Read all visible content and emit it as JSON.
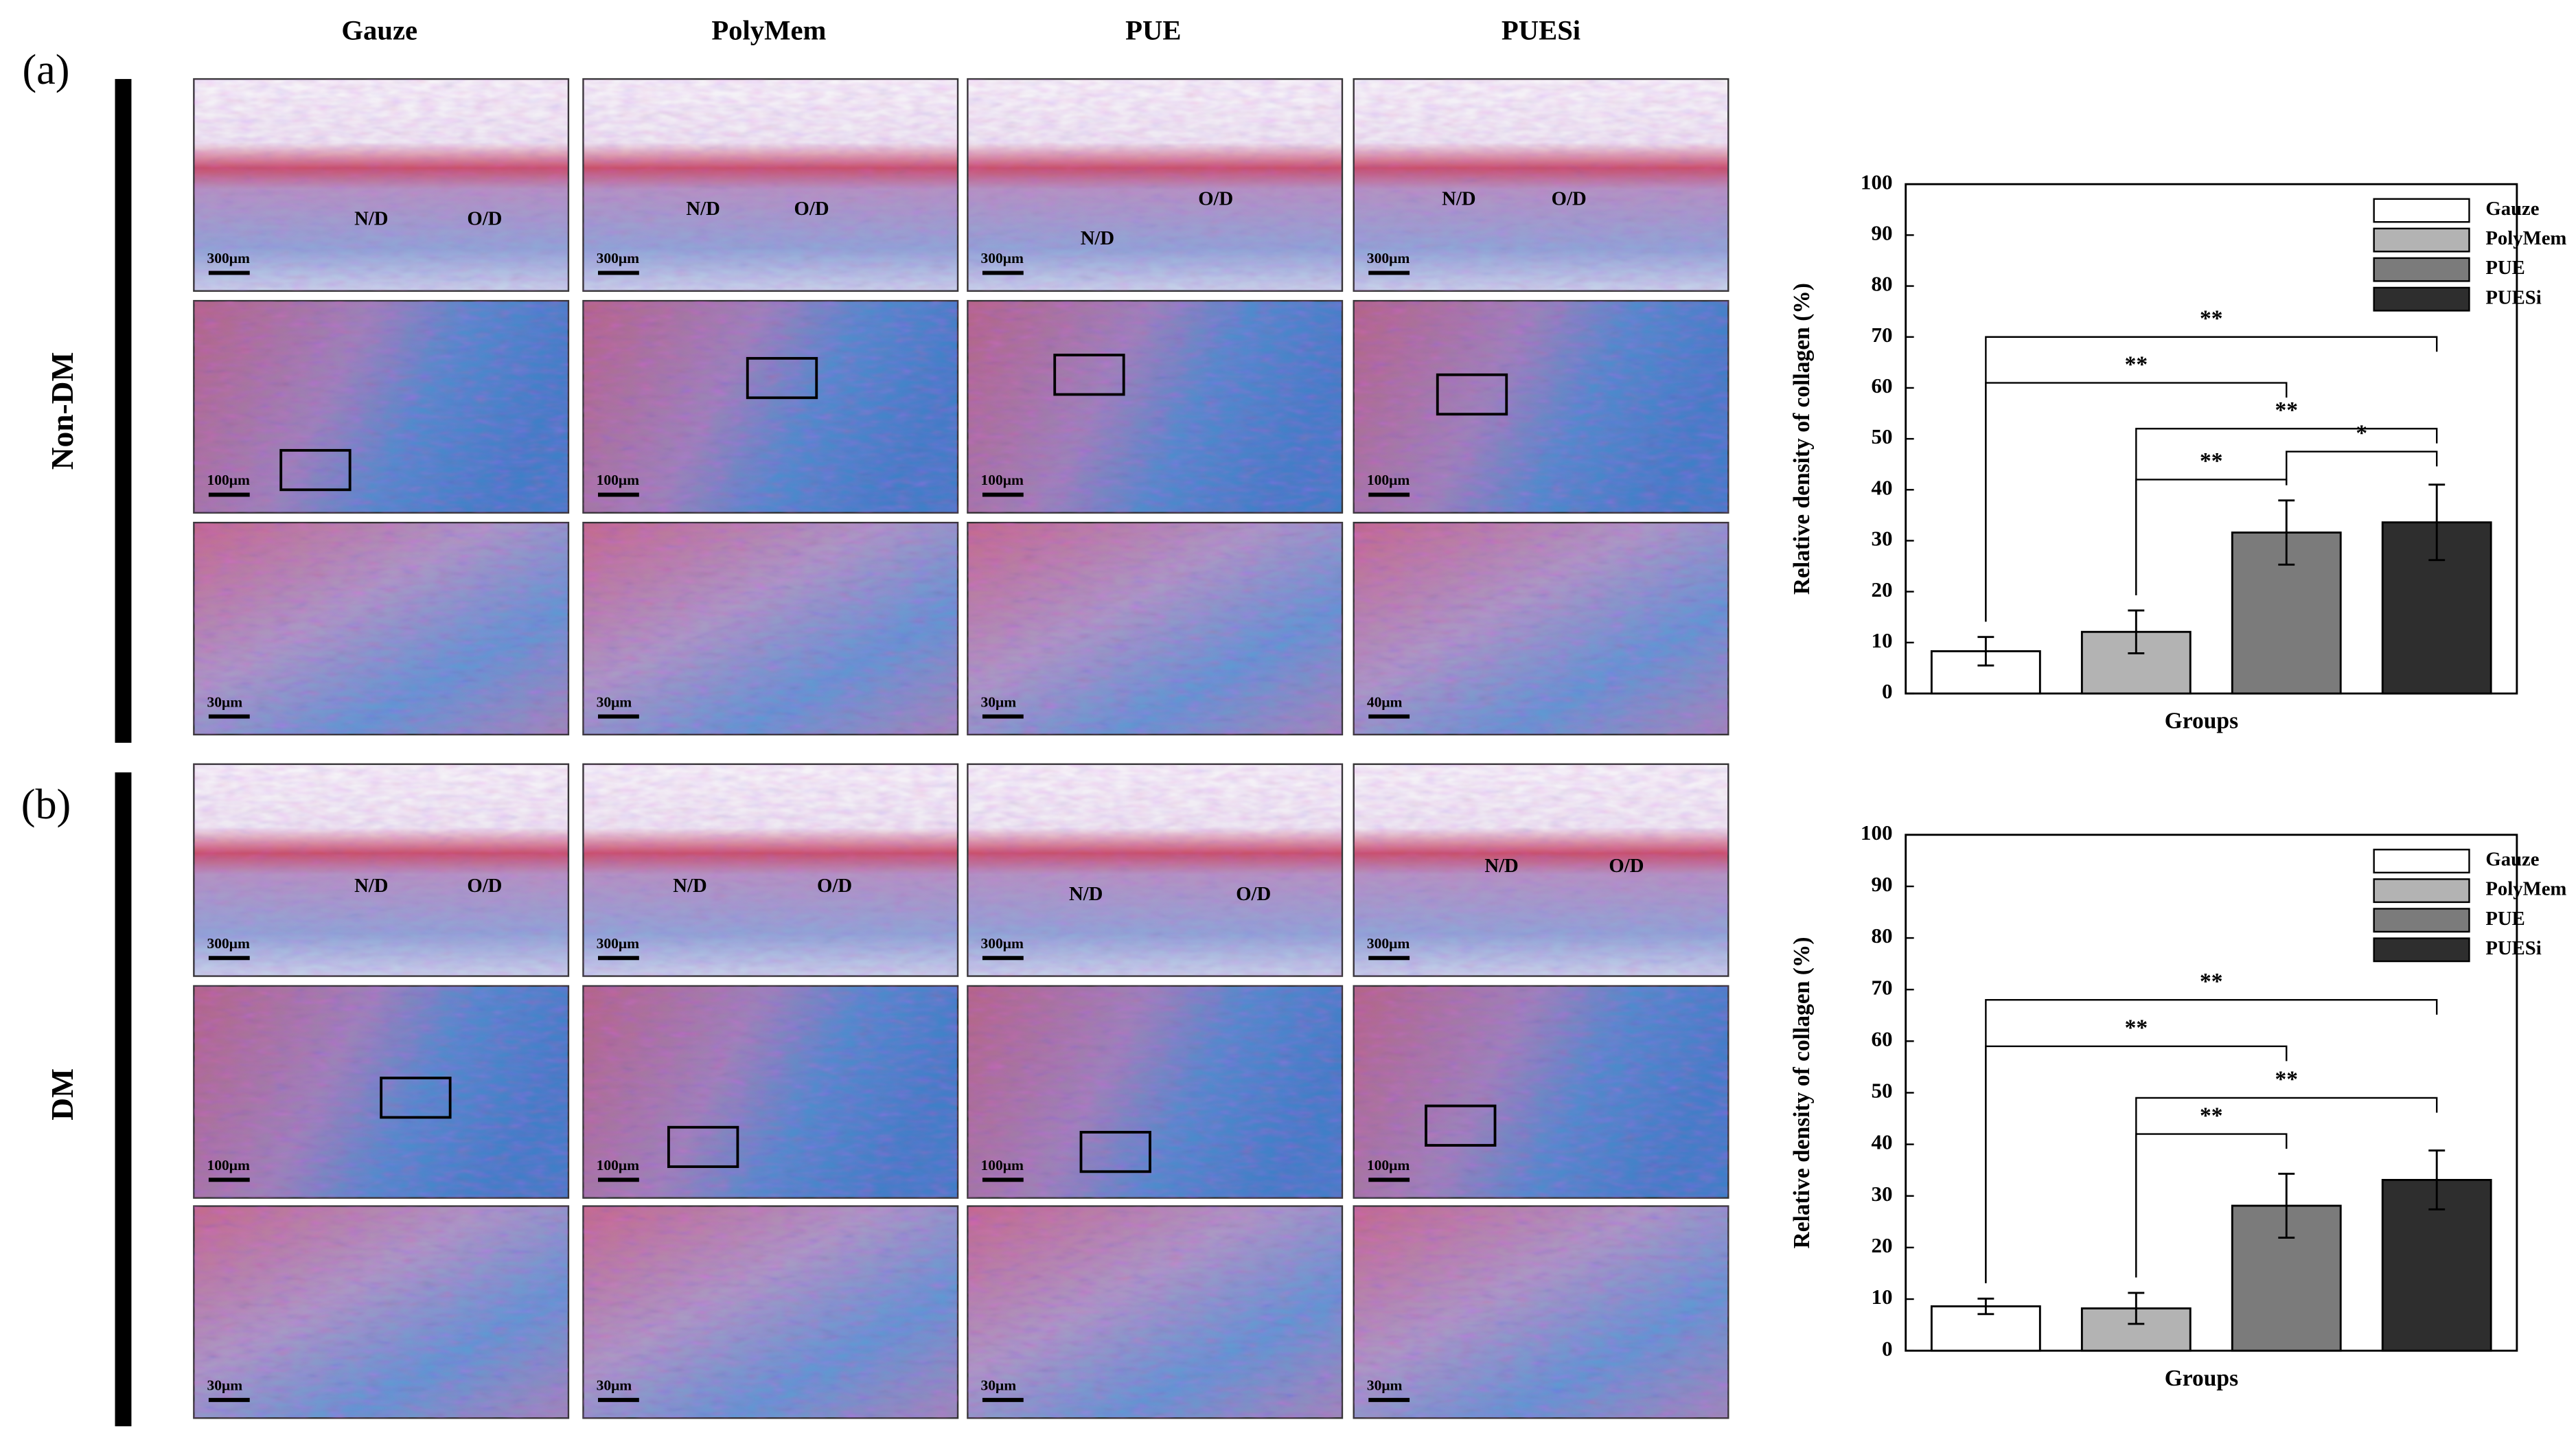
{
  "figure": {
    "columns": [
      "Gauze",
      "PolyMem",
      "PUE",
      "PUESi"
    ],
    "panels": [
      {
        "label": "(a)",
        "group": "Non-DM",
        "scale_bars": [
          [
            "300μm",
            "300μm",
            "300μm",
            "300μm"
          ],
          [
            "100μm",
            "100μm",
            "100μm",
            "100μm"
          ],
          [
            "30μm",
            "30μm",
            "30μm",
            "40μm"
          ]
        ]
      },
      {
        "label": "(b)",
        "group": "DM",
        "scale_bars": [
          [
            "300μm",
            "300μm",
            "300μm",
            "300μm"
          ],
          [
            "100μm",
            "100μm",
            "100μm",
            "100μm"
          ],
          [
            "30μm",
            "30μm",
            "30μm",
            "30μm"
          ]
        ]
      }
    ],
    "regions": [
      "N/D",
      "O/D"
    ]
  },
  "chart_data": [
    {
      "type": "bar",
      "ylabel": "Relative density of collagen (%)",
      "xlabel": "Groups",
      "categories": [
        "Gauze",
        "PolyMem",
        "PUE",
        "PUESi"
      ],
      "values": [
        8.3,
        12.1,
        31.6,
        33.6
      ],
      "errors": [
        2.8,
        4.2,
        6.3,
        7.4
      ],
      "colors": [
        "#ffffff",
        "#b3b3b3",
        "#7b7b7b",
        "#2e2e2e"
      ],
      "ylim": [
        0,
        100
      ],
      "yticks": [
        0,
        10,
        20,
        30,
        40,
        50,
        60,
        70,
        80,
        90,
        100
      ],
      "legend": "top-right",
      "significance": [
        {
          "groups": [
            "Gauze",
            "PUESi"
          ],
          "label": "**"
        },
        {
          "groups": [
            "Gauze",
            "PUE"
          ],
          "label": "**"
        },
        {
          "groups": [
            "PolyMem",
            "PUESi"
          ],
          "label": "**"
        },
        {
          "groups": [
            "PUE",
            "PUESi"
          ],
          "label": "*"
        },
        {
          "groups": [
            "PolyMem",
            "PUE"
          ],
          "label": "**"
        }
      ]
    },
    {
      "type": "bar",
      "ylabel": "Relative density of collagen (%)",
      "xlabel": "Groups",
      "categories": [
        "Gauze",
        "PolyMem",
        "PUE",
        "PUESi"
      ],
      "values": [
        8.6,
        8.2,
        28.1,
        33.1
      ],
      "errors": [
        1.5,
        3.0,
        6.2,
        5.7
      ],
      "colors": [
        "#ffffff",
        "#b3b3b3",
        "#7b7b7b",
        "#2e2e2e"
      ],
      "ylim": [
        0,
        100
      ],
      "yticks": [
        0,
        10,
        20,
        30,
        40,
        50,
        60,
        70,
        80,
        90,
        100
      ],
      "legend": "top-right",
      "significance": [
        {
          "groups": [
            "Gauze",
            "PUESi"
          ],
          "label": "**"
        },
        {
          "groups": [
            "Gauze",
            "PUE"
          ],
          "label": "**"
        },
        {
          "groups": [
            "PolyMem",
            "PUESi"
          ],
          "label": "**"
        },
        {
          "groups": [
            "PolyMem",
            "PUE"
          ],
          "label": "**"
        }
      ]
    }
  ]
}
